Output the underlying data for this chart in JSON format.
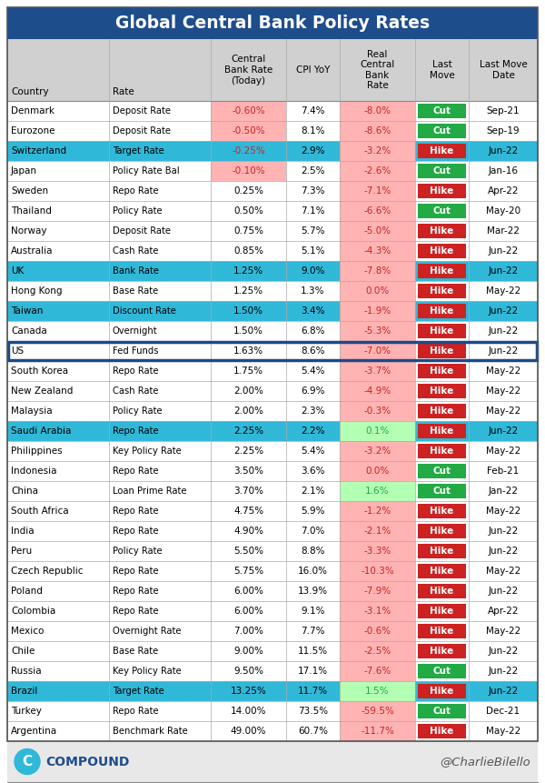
{
  "title": "Global Central Bank Policy Rates",
  "title_bg": "#1e4d8c",
  "title_color": "#ffffff",
  "header_bg": "#d0d0d0",
  "col_headers_line1": [
    "",
    "",
    "Central",
    "",
    "Real",
    "",
    ""
  ],
  "col_headers_line2": [
    "",
    "",
    "Bank Rate",
    "",
    "Central",
    "Last",
    "Last Move"
  ],
  "col_headers_line3": [
    "Country",
    "Rate",
    "(Today)",
    "CPI YoY",
    "Bank",
    "Move",
    "Date"
  ],
  "col_headers_line4": [
    "",
    "",
    "",
    "",
    "Rate",
    "",
    ""
  ],
  "rows": [
    [
      "Denmark",
      "Deposit Rate",
      "-0.60%",
      "7.4%",
      "-8.0%",
      "Cut",
      "Sep-21"
    ],
    [
      "Eurozone",
      "Deposit Rate",
      "-0.50%",
      "8.1%",
      "-8.6%",
      "Cut",
      "Sep-19"
    ],
    [
      "Switzerland",
      "Target Rate",
      "-0.25%",
      "2.9%",
      "-3.2%",
      "Hike",
      "Jun-22"
    ],
    [
      "Japan",
      "Policy Rate Bal",
      "-0.10%",
      "2.5%",
      "-2.6%",
      "Cut",
      "Jan-16"
    ],
    [
      "Sweden",
      "Repo Rate",
      "0.25%",
      "7.3%",
      "-7.1%",
      "Hike",
      "Apr-22"
    ],
    [
      "Thailand",
      "Policy Rate",
      "0.50%",
      "7.1%",
      "-6.6%",
      "Cut",
      "May-20"
    ],
    [
      "Norway",
      "Deposit Rate",
      "0.75%",
      "5.7%",
      "-5.0%",
      "Hike",
      "Mar-22"
    ],
    [
      "Australia",
      "Cash Rate",
      "0.85%",
      "5.1%",
      "-4.3%",
      "Hike",
      "Jun-22"
    ],
    [
      "UK",
      "Bank Rate",
      "1.25%",
      "9.0%",
      "-7.8%",
      "Hike",
      "Jun-22"
    ],
    [
      "Hong Kong",
      "Base Rate",
      "1.25%",
      "1.3%",
      "0.0%",
      "Hike",
      "May-22"
    ],
    [
      "Taiwan",
      "Discount Rate",
      "1.50%",
      "3.4%",
      "-1.9%",
      "Hike",
      "Jun-22"
    ],
    [
      "Canada",
      "Overnight",
      "1.50%",
      "6.8%",
      "-5.3%",
      "Hike",
      "Jun-22"
    ],
    [
      "US",
      "Fed Funds",
      "1.63%",
      "8.6%",
      "-7.0%",
      "Hike",
      "Jun-22"
    ],
    [
      "South Korea",
      "Repo Rate",
      "1.75%",
      "5.4%",
      "-3.7%",
      "Hike",
      "May-22"
    ],
    [
      "New Zealand",
      "Cash Rate",
      "2.00%",
      "6.9%",
      "-4.9%",
      "Hike",
      "May-22"
    ],
    [
      "Malaysia",
      "Policy Rate",
      "2.00%",
      "2.3%",
      "-0.3%",
      "Hike",
      "May-22"
    ],
    [
      "Saudi Arabia",
      "Repo Rate",
      "2.25%",
      "2.2%",
      "0.1%",
      "Hike",
      "Jun-22"
    ],
    [
      "Philippines",
      "Key Policy Rate",
      "2.25%",
      "5.4%",
      "-3.2%",
      "Hike",
      "May-22"
    ],
    [
      "Indonesia",
      "Repo Rate",
      "3.50%",
      "3.6%",
      "0.0%",
      "Cut",
      "Feb-21"
    ],
    [
      "China",
      "Loan Prime Rate",
      "3.70%",
      "2.1%",
      "1.6%",
      "Cut",
      "Jan-22"
    ],
    [
      "South Africa",
      "Repo Rate",
      "4.75%",
      "5.9%",
      "-1.2%",
      "Hike",
      "May-22"
    ],
    [
      "India",
      "Repo Rate",
      "4.90%",
      "7.0%",
      "-2.1%",
      "Hike",
      "Jun-22"
    ],
    [
      "Peru",
      "Policy Rate",
      "5.50%",
      "8.8%",
      "-3.3%",
      "Hike",
      "Jun-22"
    ],
    [
      "Czech Republic",
      "Repo Rate",
      "5.75%",
      "16.0%",
      "-10.3%",
      "Hike",
      "May-22"
    ],
    [
      "Poland",
      "Repo Rate",
      "6.00%",
      "13.9%",
      "-7.9%",
      "Hike",
      "Jun-22"
    ],
    [
      "Colombia",
      "Repo Rate",
      "6.00%",
      "9.1%",
      "-3.1%",
      "Hike",
      "Apr-22"
    ],
    [
      "Mexico",
      "Overnight Rate",
      "7.00%",
      "7.7%",
      "-0.6%",
      "Hike",
      "May-22"
    ],
    [
      "Chile",
      "Base Rate",
      "9.00%",
      "11.5%",
      "-2.5%",
      "Hike",
      "Jun-22"
    ],
    [
      "Russia",
      "Key Policy Rate",
      "9.50%",
      "17.1%",
      "-7.6%",
      "Cut",
      "Jun-22"
    ],
    [
      "Brazil",
      "Target Rate",
      "13.25%",
      "11.7%",
      "1.5%",
      "Hike",
      "Jun-22"
    ],
    [
      "Turkey",
      "Repo Rate",
      "14.00%",
      "73.5%",
      "-59.5%",
      "Cut",
      "Dec-21"
    ],
    [
      "Argentina",
      "Benchmark Rate",
      "49.00%",
      "60.7%",
      "-11.7%",
      "Hike",
      "May-22"
    ]
  ],
  "cyan_rows": [
    "Switzerland",
    "UK",
    "Taiwan",
    "Saudi Arabia",
    "Brazil"
  ],
  "blue_border_row": "US",
  "cyan_color": "#30b8d8",
  "pink_bg": "#ffb3b3",
  "light_green_bg": "#b3ffb3",
  "hike_color": "#cc2222",
  "cut_color": "#22aa44",
  "neg_text_color": "#cc2222",
  "pos_text_color": "#22aa44",
  "footer_right": "@CharlieBilello"
}
